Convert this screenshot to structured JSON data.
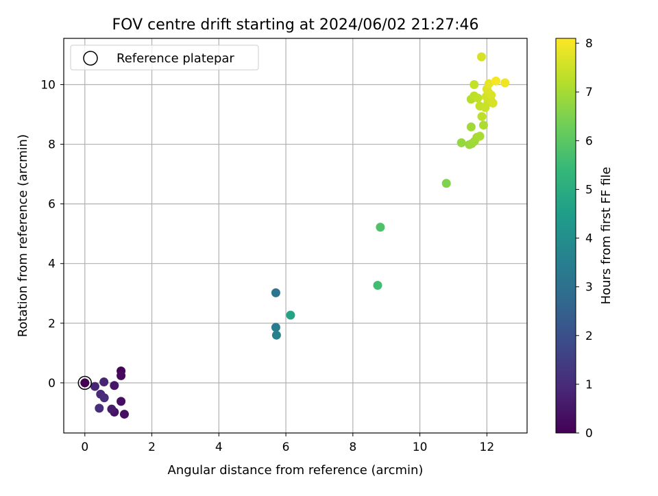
{
  "chart_data": {
    "type": "scatter",
    "title": "FOV centre drift starting at 2024/06/02 21:27:46",
    "xlabel": "Angular distance from reference (arcmin)",
    "ylabel": "Rotation from reference (arcmin)",
    "xlim": [
      -0.63,
      13.2
    ],
    "ylim": [
      -1.68,
      11.55
    ],
    "xticks": [
      0,
      2,
      4,
      6,
      8,
      10,
      12
    ],
    "yticks": [
      0,
      2,
      4,
      6,
      8,
      10
    ],
    "grid": true,
    "legend": {
      "placement": "top-left",
      "entries": [
        "Reference platepar"
      ]
    },
    "reference_point": {
      "x": 0,
      "y": 0
    },
    "colorbar": {
      "label": "Hours from first FF file",
      "range": [
        0,
        8.1
      ],
      "ticks": [
        0,
        1,
        2,
        3,
        4,
        5,
        6,
        7,
        8
      ],
      "colormap": "viridis",
      "colors": [
        "#440154",
        "#482878",
        "#3e4989",
        "#31688e",
        "#26828e",
        "#1f9e89",
        "#35b779",
        "#6ece58",
        "#b5de2b",
        "#fde725"
      ]
    },
    "points": [
      {
        "x": 0.0,
        "y": 0.0,
        "c": 0.0
      },
      {
        "x": 1.08,
        "y": 0.4,
        "c": 0.1
      },
      {
        "x": 1.08,
        "y": 0.24,
        "c": 0.2
      },
      {
        "x": 1.08,
        "y": -0.62,
        "c": 0.3
      },
      {
        "x": 1.18,
        "y": -1.05,
        "c": 0.35
      },
      {
        "x": 0.88,
        "y": -0.98,
        "c": 0.4
      },
      {
        "x": 0.88,
        "y": -0.09,
        "c": 0.5
      },
      {
        "x": 0.8,
        "y": -0.88,
        "c": 0.6
      },
      {
        "x": 0.57,
        "y": 0.03,
        "c": 0.8
      },
      {
        "x": 0.3,
        "y": -0.12,
        "c": 0.85
      },
      {
        "x": 0.47,
        "y": -0.38,
        "c": 0.9
      },
      {
        "x": 0.58,
        "y": -0.5,
        "c": 1.0
      },
      {
        "x": 0.43,
        "y": -0.85,
        "c": 1.05
      },
      {
        "x": 5.7,
        "y": 3.02,
        "c": 3.2
      },
      {
        "x": 5.7,
        "y": 1.86,
        "c": 3.4
      },
      {
        "x": 5.72,
        "y": 1.6,
        "c": 3.5
      },
      {
        "x": 6.14,
        "y": 2.27,
        "c": 4.7
      },
      {
        "x": 8.74,
        "y": 3.27,
        "c": 5.6
      },
      {
        "x": 8.82,
        "y": 5.22,
        "c": 5.8
      },
      {
        "x": 10.79,
        "y": 6.69,
        "c": 6.5
      },
      {
        "x": 11.24,
        "y": 8.05,
        "c": 6.8
      },
      {
        "x": 11.48,
        "y": 7.99,
        "c": 6.85
      },
      {
        "x": 11.55,
        "y": 8.02,
        "c": 6.9
      },
      {
        "x": 11.63,
        "y": 8.1,
        "c": 6.95
      },
      {
        "x": 11.7,
        "y": 8.23,
        "c": 7.0
      },
      {
        "x": 11.79,
        "y": 8.27,
        "c": 7.05
      },
      {
        "x": 11.53,
        "y": 8.58,
        "c": 6.95
      },
      {
        "x": 11.9,
        "y": 8.64,
        "c": 7.1
      },
      {
        "x": 11.85,
        "y": 8.93,
        "c": 7.3
      },
      {
        "x": 11.53,
        "y": 9.51,
        "c": 7.2
      },
      {
        "x": 11.62,
        "y": 9.62,
        "c": 7.3
      },
      {
        "x": 11.73,
        "y": 9.55,
        "c": 7.35
      },
      {
        "x": 11.79,
        "y": 9.28,
        "c": 7.4
      },
      {
        "x": 11.95,
        "y": 9.23,
        "c": 7.45
      },
      {
        "x": 12.03,
        "y": 9.4,
        "c": 7.5
      },
      {
        "x": 11.98,
        "y": 9.6,
        "c": 7.55
      },
      {
        "x": 12.13,
        "y": 9.45,
        "c": 7.55
      },
      {
        "x": 12.18,
        "y": 9.38,
        "c": 7.6
      },
      {
        "x": 12.05,
        "y": 9.73,
        "c": 7.6
      },
      {
        "x": 12.13,
        "y": 9.65,
        "c": 7.65
      },
      {
        "x": 12.0,
        "y": 9.85,
        "c": 7.7
      },
      {
        "x": 12.06,
        "y": 10.03,
        "c": 7.8
      },
      {
        "x": 11.62,
        "y": 10.0,
        "c": 7.4
      },
      {
        "x": 11.84,
        "y": 10.93,
        "c": 7.6
      },
      {
        "x": 12.27,
        "y": 10.12,
        "c": 8.0
      },
      {
        "x": 12.54,
        "y": 10.06,
        "c": 7.9
      }
    ]
  }
}
